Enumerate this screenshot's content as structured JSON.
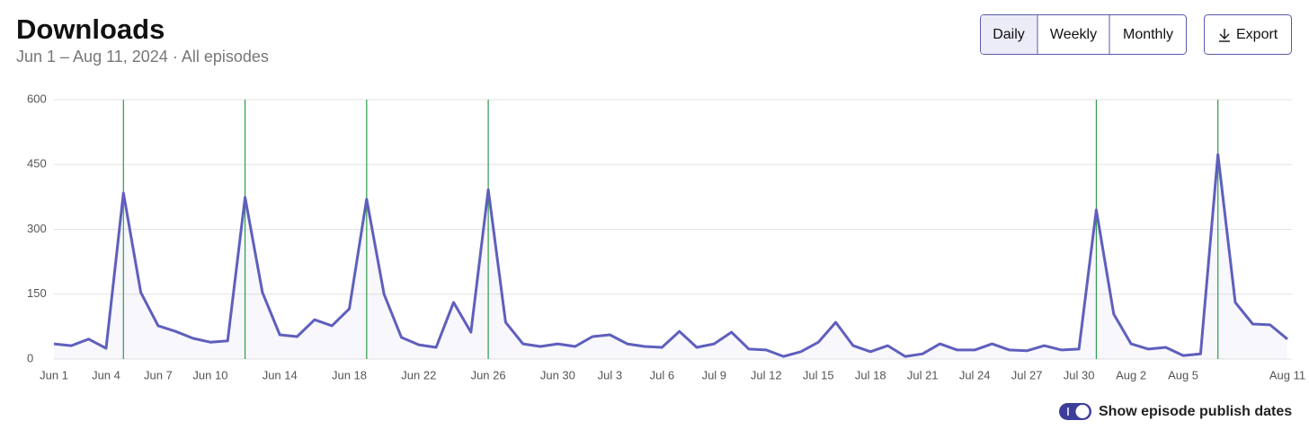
{
  "header": {
    "title": "Downloads",
    "subtitle": "Jun 1 – Aug 11, 2024 · All episodes"
  },
  "controls": {
    "buttons": [
      "Daily",
      "Weekly",
      "Monthly"
    ],
    "export": "Export"
  },
  "toggle": {
    "label": "Show episode publish dates"
  },
  "chart_data": {
    "type": "line",
    "color": "#5f5fbd",
    "publish_color": "#2f9a4c",
    "categories": [
      "Jun 1",
      null,
      null,
      "Jun 4",
      null,
      null,
      "Jun 7",
      null,
      null,
      "Jun 10",
      null,
      null,
      null,
      "Jun 14",
      null,
      null,
      null,
      "Jun 18",
      null,
      null,
      null,
      "Jun 22",
      null,
      null,
      null,
      "Jun 26",
      null,
      null,
      null,
      "Jun 30",
      null,
      null,
      "Jul 3",
      null,
      null,
      "Jul 6",
      null,
      null,
      "Jul 9",
      null,
      null,
      "Jul 12",
      null,
      null,
      "Jul 15",
      null,
      null,
      "Jul 18",
      null,
      null,
      "Jul 21",
      null,
      null,
      "Jul 24",
      null,
      null,
      "Jul 27",
      null,
      null,
      "Jul 30",
      null,
      null,
      "Aug 2",
      null,
      null,
      "Aug 5",
      null,
      null,
      null,
      null,
      null,
      "Aug 11"
    ],
    "values": [
      35,
      31,
      46,
      25,
      384,
      154,
      77,
      64,
      48,
      39,
      42,
      374,
      154,
      56,
      52,
      91,
      77,
      116,
      370,
      150,
      50,
      33,
      27,
      131,
      62,
      392,
      85,
      35,
      29,
      35,
      29,
      52,
      56,
      35,
      29,
      27,
      64,
      27,
      35,
      62,
      23,
      21,
      6,
      17,
      39,
      85,
      31,
      17,
      31,
      6,
      12,
      35,
      21,
      21,
      35,
      21,
      19,
      31,
      21,
      23,
      345,
      104,
      35,
      23,
      27,
      8,
      12,
      473,
      131,
      81,
      79,
      46
    ],
    "publish_days": [
      4,
      11,
      18,
      25,
      60,
      67
    ],
    "ylim": [
      0,
      600
    ],
    "yticks": [
      0,
      150,
      300,
      450,
      600
    ],
    "grid": true
  }
}
